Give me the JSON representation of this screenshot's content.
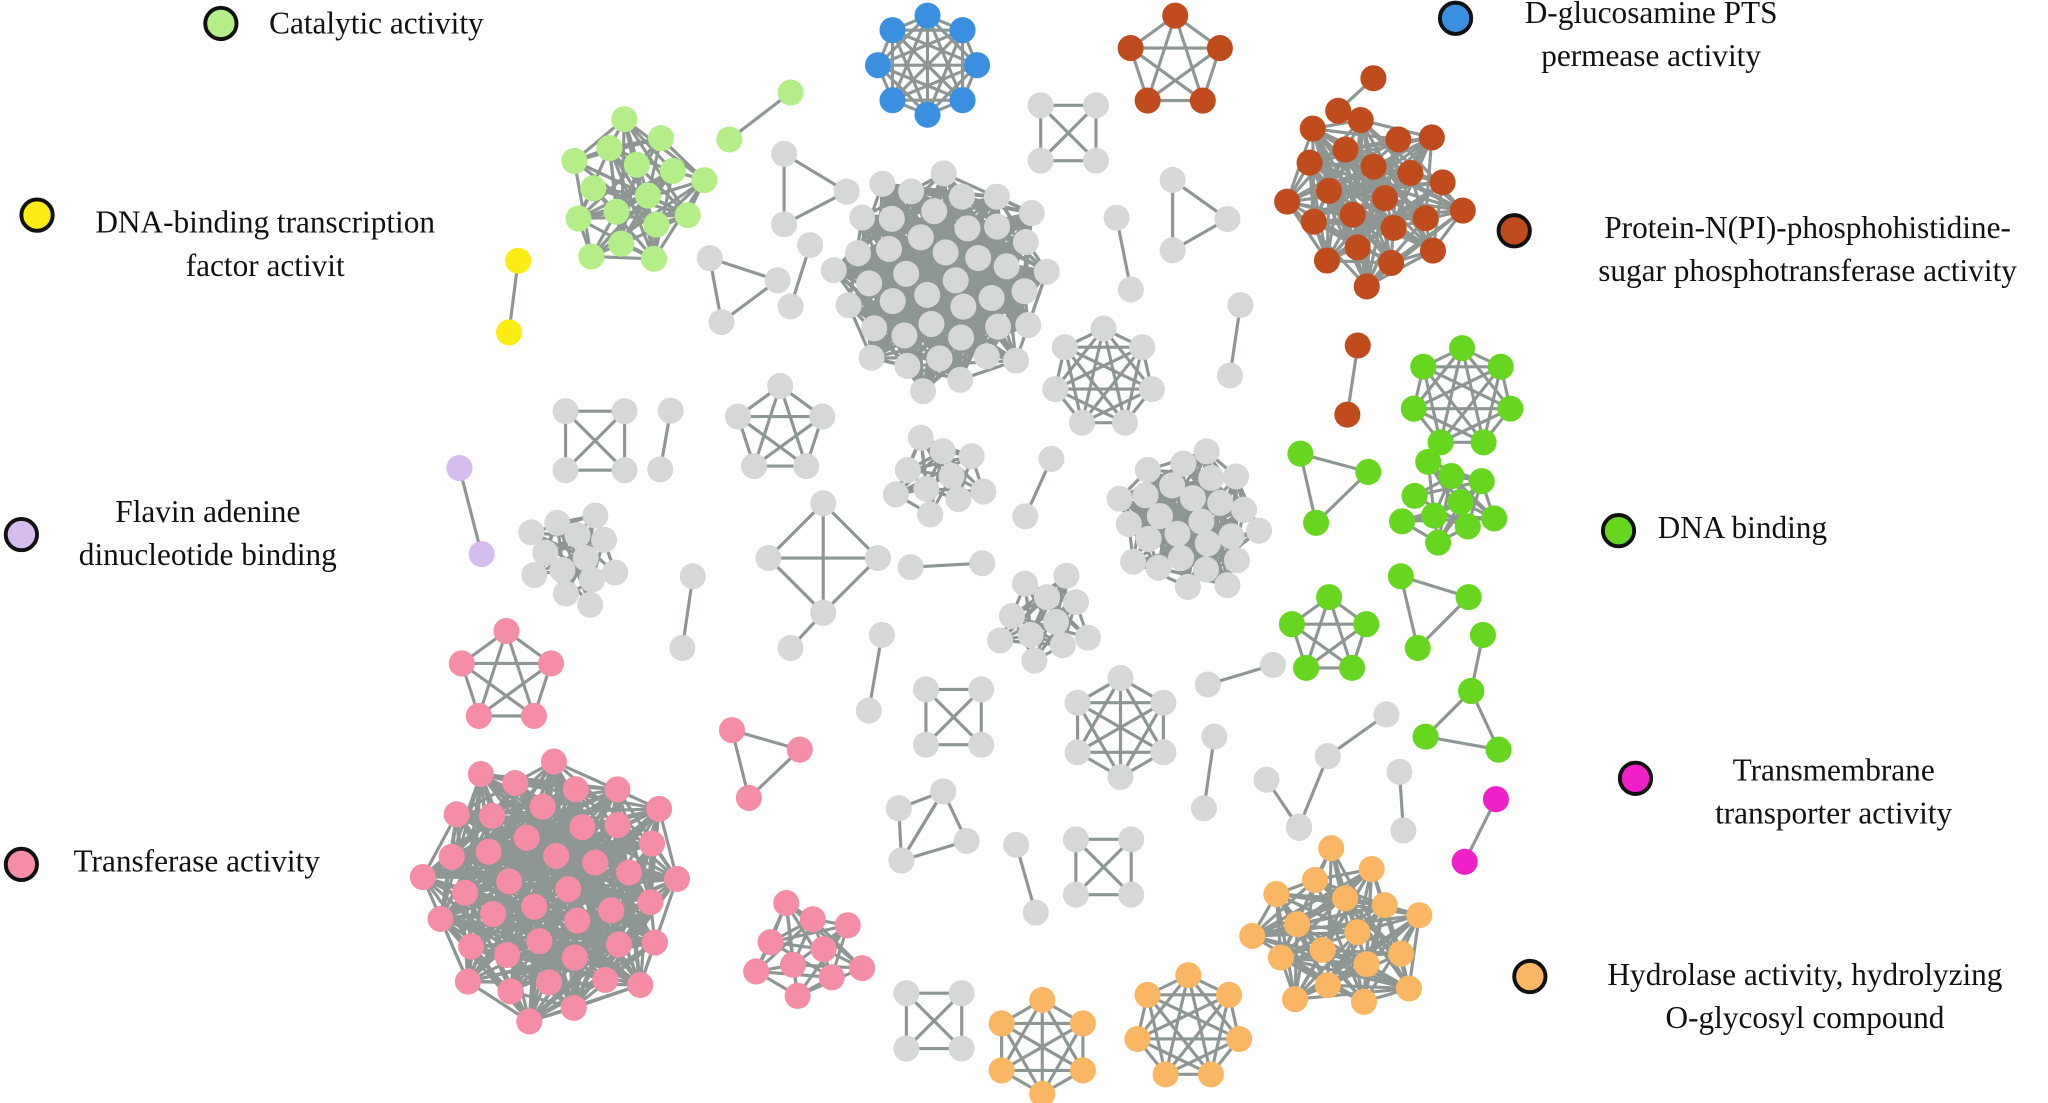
{
  "legend": {
    "items": [
      {
        "lines": [
          "Catalytic activity"
        ],
        "color": "#b4ee88"
      },
      {
        "lines": [
          "DNA-binding transcription",
          "factor activit"
        ],
        "color": "#fbec14"
      },
      {
        "lines": [
          "Flavin adenine",
          "dinucleotide binding"
        ],
        "color": "#d5bdf0"
      },
      {
        "lines": [
          "Transferase activity"
        ],
        "color": "#f58da6"
      },
      {
        "lines": [
          "D-glucosamine PTS",
          "permease activity"
        ],
        "color": "#3b8fe0"
      },
      {
        "lines": [
          "Protein-N(PI)-phosphohistidine-",
          "sugar phosphotransferase activity"
        ],
        "color": "#c04b1c"
      },
      {
        "lines": [
          "DNA binding"
        ],
        "color": "#66d61f"
      },
      {
        "lines": [
          "Transmembrane",
          "transporter activity"
        ],
        "color": "#f01fc8"
      },
      {
        "lines": [
          "Hydrolase activity, hydrolyzing",
          "O-glycosyl compound"
        ],
        "color": "#fbb663"
      }
    ]
  }
}
